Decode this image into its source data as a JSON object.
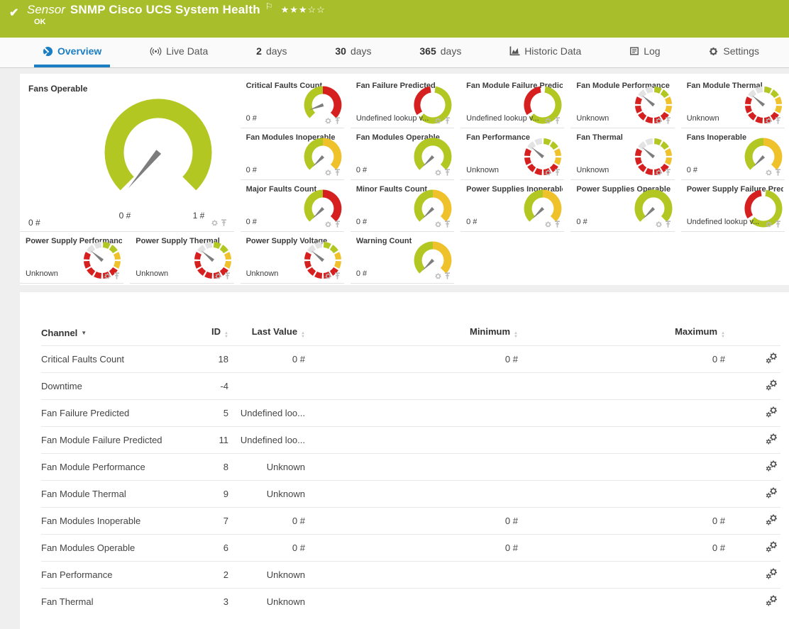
{
  "colors": {
    "lime": "#a8bf2b",
    "green": "#b3c722",
    "yellow": "#efc12b",
    "red": "#d62020",
    "gray_seg": "#e3e3e3",
    "needle": "#7d7d7d",
    "blue": "#1b7ec2",
    "icon_gray": "#b9b9b9",
    "icon_dark": "#4a4a4a"
  },
  "header": {
    "sensor_label": "Sensor",
    "title": "SNMP Cisco UCS System Health",
    "status": "OK",
    "stars_text": "★★★☆☆",
    "stars_filled": 3,
    "stars_total": 5
  },
  "tabs": [
    {
      "id": "overview",
      "icon": "gauge",
      "label": "Overview",
      "active": true
    },
    {
      "id": "live-data",
      "icon": "live",
      "label": "Live Data"
    },
    {
      "id": "2-days",
      "num": "2",
      "label": "days"
    },
    {
      "id": "30-days",
      "num": "30",
      "label": "days"
    },
    {
      "id": "365-days",
      "num": "365",
      "label": "days"
    },
    {
      "id": "historic-data",
      "icon": "chart",
      "label": "Historic Data"
    },
    {
      "id": "log",
      "icon": "log",
      "label": "Log"
    },
    {
      "id": "settings",
      "icon": "gear",
      "label": "Settings"
    }
  ],
  "overview": {
    "main_gauge": {
      "title": "Fans Operable",
      "value": "0 #",
      "min_label": "0 #",
      "max_label": "1 #",
      "style": "green",
      "needle": -140
    },
    "tiles": [
      {
        "title": "Critical Faults Count",
        "value": "0 #",
        "style": "green-red",
        "needle": -110
      },
      {
        "title": "Fan Failure Predicted",
        "value": "Undefined lookup v...",
        "style": "lookup",
        "needle": null
      },
      {
        "title": "Fan Module Failure Predicted",
        "value": "Undefined lookup v...",
        "style": "lookup",
        "needle": null
      },
      {
        "title": "Fan Module Performance",
        "value": "Unknown",
        "style": "unknown",
        "needle": -50
      },
      {
        "title": "Fan Module Thermal",
        "value": "Unknown",
        "style": "unknown",
        "needle": -50
      },
      {
        "title": "Fan Modules Inoperable",
        "value": "0 #",
        "style": "green-yellow",
        "needle": -135
      },
      {
        "title": "Fan Modules Operable",
        "value": "0 #",
        "style": "green",
        "needle": -135
      },
      {
        "title": "Fan Performance",
        "value": "Unknown",
        "style": "unknown",
        "needle": -50
      },
      {
        "title": "Fan Thermal",
        "value": "Unknown",
        "style": "unknown",
        "needle": -50
      },
      {
        "title": "Fans Inoperable",
        "value": "0 #",
        "style": "green-yellow",
        "needle": -135
      },
      {
        "title": "Major Faults Count",
        "value": "0 #",
        "style": "green-red",
        "needle": -135
      },
      {
        "title": "Minor Faults Count",
        "value": "0 #",
        "style": "green-yellow",
        "needle": -135
      },
      {
        "title": "Power Supplies Inoperable",
        "value": "0 #",
        "style": "green-yellow",
        "needle": -135
      },
      {
        "title": "Power Supplies Operable",
        "value": "0 #",
        "style": "green",
        "needle": -135
      },
      {
        "title": "Power Supply Failure Predicted",
        "value": "Undefined lookup v...",
        "style": "lookup",
        "needle": null
      },
      {
        "title": "Power Supply Performance",
        "value": "Unknown",
        "style": "unknown",
        "needle": -50
      },
      {
        "title": "Power Supply Thermal",
        "value": "Unknown",
        "style": "unknown",
        "needle": -50
      },
      {
        "title": "Power Supply Voltage",
        "value": "Unknown",
        "style": "unknown",
        "needle": -50
      },
      {
        "title": "Warning Count",
        "value": "0 #",
        "style": "green-yellow",
        "needle": -135
      }
    ]
  },
  "table": {
    "columns": [
      {
        "label": "Channel",
        "sort": "desc"
      },
      {
        "label": "ID",
        "sort": "both"
      },
      {
        "label": "Last Value",
        "sort": "both"
      },
      {
        "label": "Minimum",
        "sort": "both"
      },
      {
        "label": "Maximum",
        "sort": "both"
      }
    ],
    "rows": [
      {
        "channel": "Critical Faults Count",
        "id": "18",
        "last": "0 #",
        "min": "0 #",
        "max": "0 #"
      },
      {
        "channel": "Downtime",
        "id": "-4",
        "last": "",
        "min": "",
        "max": ""
      },
      {
        "channel": "Fan Failure Predicted",
        "id": "5",
        "last": "Undefined loo...",
        "min": "",
        "max": ""
      },
      {
        "channel": "Fan Module Failure Predicted",
        "id": "11",
        "last": "Undefined loo...",
        "min": "",
        "max": ""
      },
      {
        "channel": "Fan Module Performance",
        "id": "8",
        "last": "Unknown",
        "min": "",
        "max": ""
      },
      {
        "channel": "Fan Module Thermal",
        "id": "9",
        "last": "Unknown",
        "min": "",
        "max": ""
      },
      {
        "channel": "Fan Modules Inoperable",
        "id": "7",
        "last": "0 #",
        "min": "0 #",
        "max": "0 #"
      },
      {
        "channel": "Fan Modules Operable",
        "id": "6",
        "last": "0 #",
        "min": "0 #",
        "max": "0 #"
      },
      {
        "channel": "Fan Performance",
        "id": "2",
        "last": "Unknown",
        "min": "",
        "max": ""
      },
      {
        "channel": "Fan Thermal",
        "id": "3",
        "last": "Unknown",
        "min": "",
        "max": ""
      }
    ]
  }
}
